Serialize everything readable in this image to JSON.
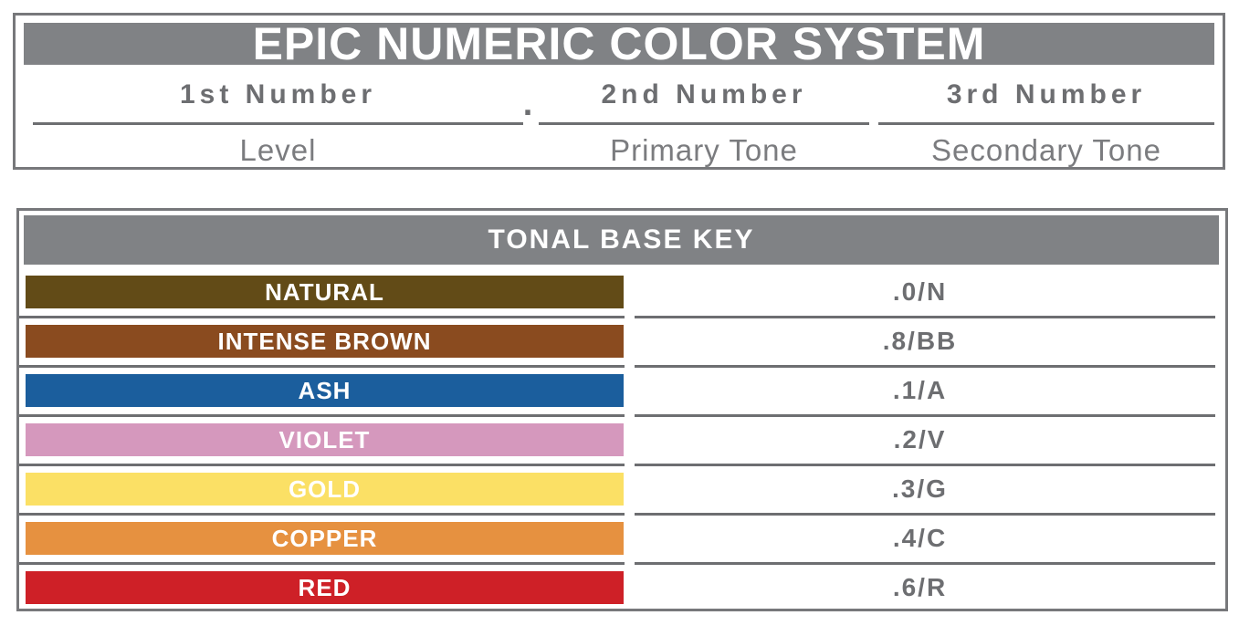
{
  "panel_top": {
    "title": "EPIC NUMERIC COLOR SYSTEM",
    "separator_dot": ".",
    "columns": [
      {
        "number": "1st Number",
        "meaning": "Level"
      },
      {
        "number": "2nd Number",
        "meaning": "Primary Tone"
      },
      {
        "number": "3rd Number",
        "meaning": "Secondary Tone"
      }
    ]
  },
  "panel_key": {
    "title": "TONAL BASE KEY",
    "rows": [
      {
        "name": "NATURAL",
        "code": ".0/N",
        "color": "#624b17"
      },
      {
        "name": "INTENSE BROWN",
        "code": ".8/BB",
        "color": "#8a4b1f"
      },
      {
        "name": "ASH",
        "code": ".1/A",
        "color": "#1b5e9d"
      },
      {
        "name": "VIOLET",
        "code": ".2/V",
        "color": "#d598bd"
      },
      {
        "name": "GOLD",
        "code": ".3/G",
        "color": "#fbe065"
      },
      {
        "name": "COPPER",
        "code": ".4/C",
        "color": "#e69140"
      },
      {
        "name": "RED",
        "code": ".6/R",
        "color": "#ce2027"
      }
    ]
  },
  "theme": {
    "header_gray": "#808285",
    "border_gray": "#77787b",
    "line_gray": "#6d6e71",
    "bold_text_gray": "#6d6e71",
    "light_text_gray": "#7b7c7f",
    "title_text": "#ffffff"
  }
}
